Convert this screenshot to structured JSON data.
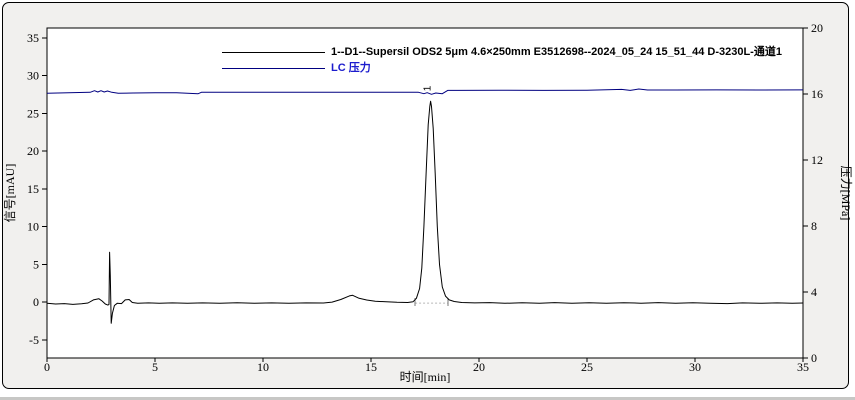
{
  "colors": {
    "background": "#f1f0ee",
    "plot_background": "#ffffff",
    "frame_border": "#000000",
    "signal_trace": "#000000",
    "pressure_trace": "#000080",
    "pressure_legend_text": "#1c1ccd",
    "integration_baseline": "#b8b8b8"
  },
  "chart_data": {
    "type": "line",
    "title": "",
    "x_axis": {
      "label": "时间[min]",
      "range": [
        0,
        35
      ],
      "ticks": [
        0,
        5,
        10,
        15,
        20,
        25,
        30,
        35
      ]
    },
    "y_left_axis": {
      "label": "信号[mAU]",
      "range": [
        -7.4,
        36.3
      ],
      "ticks": [
        -5,
        0,
        5,
        10,
        15,
        20,
        25,
        30,
        35
      ]
    },
    "y_right_axis": {
      "label": "压力[MPa]",
      "range": [
        0,
        20
      ],
      "ticks": [
        0,
        4,
        8,
        12,
        16,
        20
      ]
    },
    "legend": {
      "position": "top-center",
      "entries": [
        {
          "label": "1--D1--Supersil ODS2 5μm 4.6×250mm E3512698--2024_05_24 15_51_44 D-3230L-通道1",
          "color": "#000000"
        },
        {
          "label": "LC 压力",
          "color": "#000080"
        }
      ]
    },
    "series": [
      {
        "name": "signal",
        "axis": "left",
        "color": "#000000",
        "points": [
          [
            0,
            -0.15
          ],
          [
            0.4,
            -0.25
          ],
          [
            0.8,
            -0.2
          ],
          [
            1.2,
            -0.3
          ],
          [
            1.6,
            -0.22
          ],
          [
            1.9,
            -0.12
          ],
          [
            2.15,
            0.3
          ],
          [
            2.4,
            0.45
          ],
          [
            2.55,
            0.15
          ],
          [
            2.7,
            -0.25
          ],
          [
            2.82,
            -0.4
          ],
          [
            2.87,
            -0.3
          ],
          [
            2.9,
            6.6
          ],
          [
            2.93,
            3.5
          ],
          [
            2.97,
            -2.8
          ],
          [
            3.03,
            -1.5
          ],
          [
            3.12,
            -0.45
          ],
          [
            3.25,
            -0.15
          ],
          [
            3.45,
            -0.2
          ],
          [
            3.62,
            0.3
          ],
          [
            3.8,
            0.35
          ],
          [
            3.95,
            -0.05
          ],
          [
            4.2,
            -0.15
          ],
          [
            4.7,
            -0.1
          ],
          [
            5.2,
            -0.15
          ],
          [
            5.8,
            -0.1
          ],
          [
            6.5,
            -0.15
          ],
          [
            7.2,
            -0.1
          ],
          [
            8,
            -0.14
          ],
          [
            8.8,
            -0.08
          ],
          [
            9.6,
            -0.14
          ],
          [
            10.4,
            -0.1
          ],
          [
            11.2,
            -0.14
          ],
          [
            12,
            -0.1
          ],
          [
            12.8,
            -0.12
          ],
          [
            13.2,
            0
          ],
          [
            13.6,
            0.35
          ],
          [
            14,
            0.82
          ],
          [
            14.15,
            0.9
          ],
          [
            14.45,
            0.5
          ],
          [
            14.8,
            0.28
          ],
          [
            15.2,
            0.12
          ],
          [
            15.7,
            0.04
          ],
          [
            16.2,
            -0.02
          ],
          [
            16.7,
            -0.05
          ],
          [
            16.95,
            0.05
          ],
          [
            17.1,
            0.5
          ],
          [
            17.25,
            1.8
          ],
          [
            17.35,
            4.5
          ],
          [
            17.45,
            10
          ],
          [
            17.55,
            17
          ],
          [
            17.65,
            23.5
          ],
          [
            17.72,
            25.9
          ],
          [
            17.76,
            26.6
          ],
          [
            17.8,
            25.9
          ],
          [
            17.88,
            23
          ],
          [
            17.97,
            17
          ],
          [
            18.07,
            10
          ],
          [
            18.17,
            5
          ],
          [
            18.3,
            2
          ],
          [
            18.45,
            0.8
          ],
          [
            18.62,
            0.3
          ],
          [
            18.85,
            0.08
          ],
          [
            19.2,
            -0.05
          ],
          [
            19.8,
            -0.1
          ],
          [
            20.5,
            -0.06
          ],
          [
            21.2,
            -0.15
          ],
          [
            22,
            -0.08
          ],
          [
            22.8,
            -0.15
          ],
          [
            23.5,
            -0.06
          ],
          [
            24.3,
            -0.14
          ],
          [
            25.1,
            -0.08
          ],
          [
            25.9,
            -0.16
          ],
          [
            26.7,
            -0.08
          ],
          [
            27.5,
            -0.14
          ],
          [
            28.3,
            -0.07
          ],
          [
            29.1,
            -0.15
          ],
          [
            29.9,
            -0.08
          ],
          [
            30.7,
            -0.14
          ],
          [
            31.5,
            -0.2
          ],
          [
            32.2,
            -0.1
          ],
          [
            33,
            -0.16
          ],
          [
            33.8,
            -0.1
          ],
          [
            34.5,
            -0.14
          ],
          [
            35,
            -0.12
          ]
        ]
      },
      {
        "name": "pressure",
        "axis": "right",
        "color": "#000080",
        "points": [
          [
            0,
            16.05
          ],
          [
            1,
            16.07
          ],
          [
            2,
            16.1
          ],
          [
            2.2,
            16.2
          ],
          [
            2.35,
            16.12
          ],
          [
            2.5,
            16.2
          ],
          [
            2.65,
            16.12
          ],
          [
            2.8,
            16.18
          ],
          [
            3,
            16.1
          ],
          [
            3.3,
            16.05
          ],
          [
            4,
            16.06
          ],
          [
            5,
            16.08
          ],
          [
            6,
            16.08
          ],
          [
            7,
            16.02
          ],
          [
            7.15,
            16.1
          ],
          [
            8,
            16.1
          ],
          [
            10,
            16.1
          ],
          [
            12,
            16.1
          ],
          [
            14,
            16.1
          ],
          [
            16,
            16.1
          ],
          [
            17.2,
            16.1
          ],
          [
            17.45,
            16.02
          ],
          [
            17.6,
            16.08
          ],
          [
            17.8,
            15.98
          ],
          [
            18,
            16.06
          ],
          [
            18.3,
            16.02
          ],
          [
            18.55,
            16.22
          ],
          [
            19,
            16.22
          ],
          [
            21,
            16.23
          ],
          [
            23,
            16.22
          ],
          [
            25,
            16.23
          ],
          [
            26.6,
            16.28
          ],
          [
            27,
            16.22
          ],
          [
            27.4,
            16.3
          ],
          [
            27.8,
            16.24
          ],
          [
            29,
            16.24
          ],
          [
            31,
            16.25
          ],
          [
            33,
            16.24
          ],
          [
            35,
            16.25
          ]
        ]
      }
    ],
    "annotations": {
      "peak": {
        "label": "1",
        "x": 17.76,
        "apex_mau": 26.6,
        "label_y_mau": 28.3,
        "rotation": -90
      },
      "integration": {
        "x_start": 17.04,
        "x_end": 18.56,
        "y_mau": 0
      }
    }
  }
}
